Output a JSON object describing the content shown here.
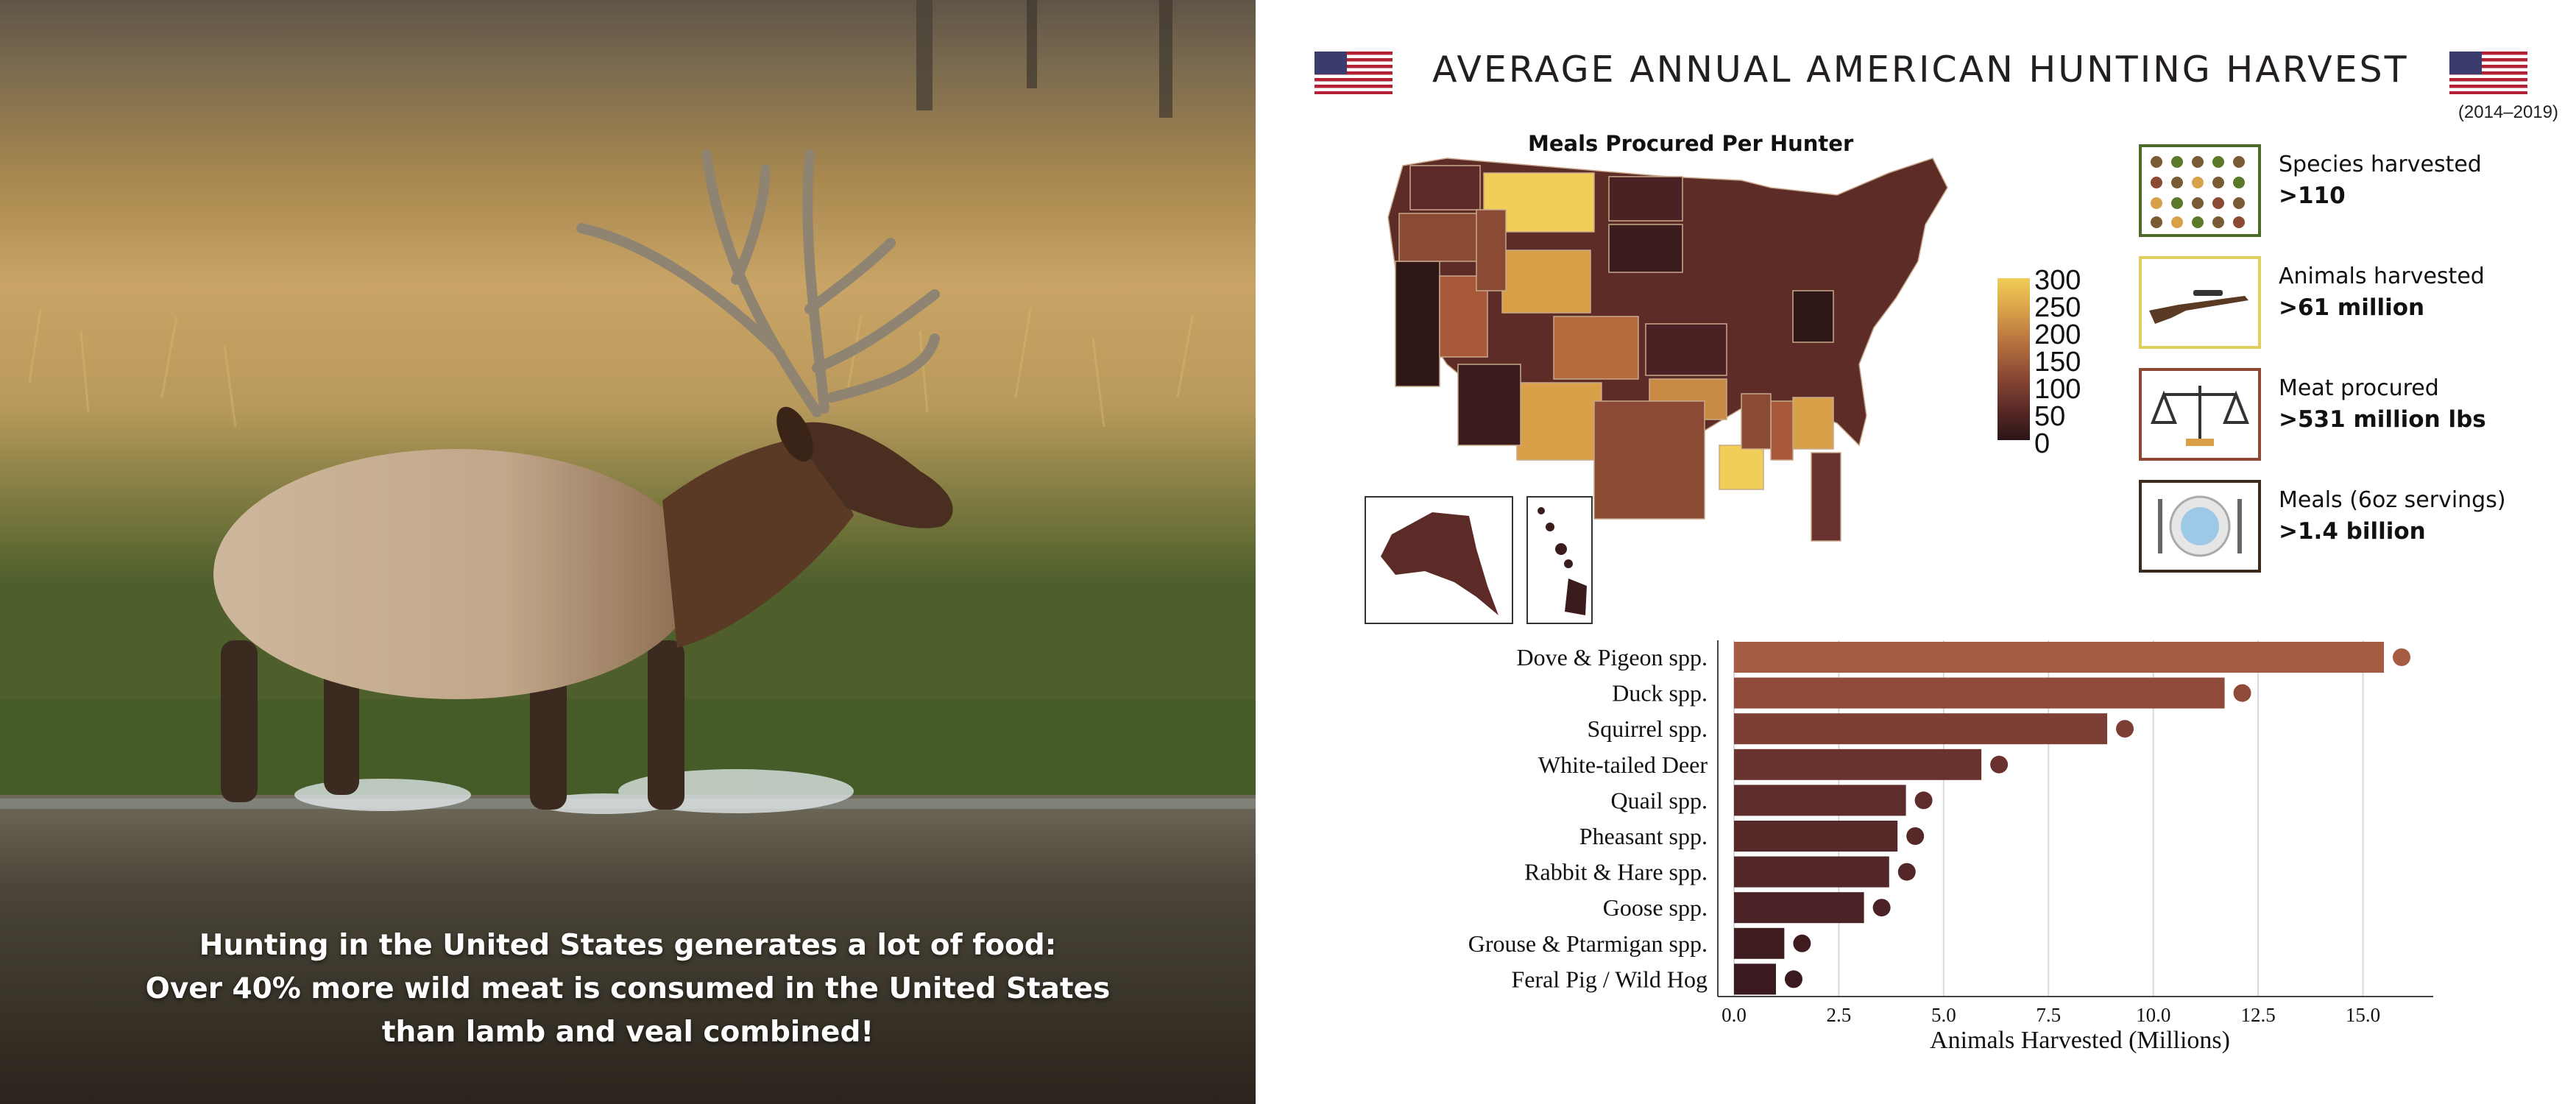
{
  "photo": {
    "caption_lines": [
      "Hunting in the United States generates a lot of food:",
      "Over 40% more wild meat is consumed in the United States",
      "than lamb and veal combined!"
    ]
  },
  "header": {
    "title": "AVERAGE ANNUAL AMERICAN HUNTING HARVEST",
    "period": "(2014–2019)",
    "flag_icon": "us-flag-icon"
  },
  "map": {
    "title": "Meals Procured Per Hunter",
    "colorbar_ticks": [
      "300",
      "250",
      "200",
      "150",
      "100",
      "50",
      "0"
    ],
    "colorbar_colors": [
      "#f1ce58",
      "#2a1416"
    ]
  },
  "stats": [
    {
      "label": "Species harvested",
      "value": ">110",
      "icon": "wildlife-species-icon",
      "border": "#4e6a2a"
    },
    {
      "label": "Animals harvested",
      "value": ">61 million",
      "icon": "rifle-icon",
      "border": "#e0cf5e"
    },
    {
      "label": "Meat procured",
      "value": ">531 million lbs",
      "icon": "scale-icon",
      "border": "#8b4a34"
    },
    {
      "label": "Meals (6oz servings)",
      "value": ">1.4 billion",
      "icon": "plate-cutlery-icon",
      "border": "#3b2a1e"
    }
  ],
  "chart_data": {
    "type": "bar",
    "orientation": "horizontal",
    "categories": [
      "Dove & Pigeon spp.",
      "Duck spp.",
      "Squirrel spp.",
      "White-tailed Deer",
      "Quail spp.",
      "Pheasant spp.",
      "Rabbit & Hare spp.",
      "Goose spp.",
      "Grouse & Ptarmigan spp.",
      "Feral Pig / Wild Hog"
    ],
    "values": [
      15.5,
      11.7,
      8.9,
      5.9,
      4.1,
      3.9,
      3.7,
      3.1,
      1.2,
      1.0
    ],
    "colors": [
      "#a65c43",
      "#8f4a3a",
      "#7d3e35",
      "#6a322f",
      "#5e2c2b",
      "#572828",
      "#532627",
      "#4b2225",
      "#3f1c20",
      "#3a1a1e"
    ],
    "xticks": [
      "0.0",
      "2.5",
      "5.0",
      "7.5",
      "10.0",
      "12.5",
      "15.0"
    ],
    "xlabel": "Animals Harvested (Millions)",
    "xlim": [
      0,
      16.5
    ],
    "grid": true
  }
}
